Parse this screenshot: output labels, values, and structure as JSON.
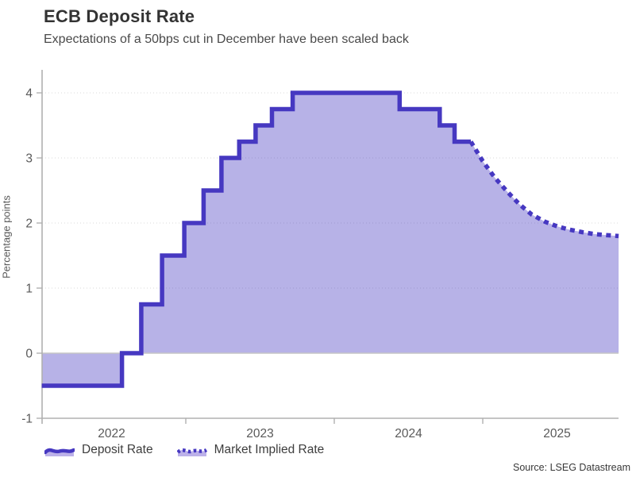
{
  "header": {
    "title": "ECB Deposit Rate",
    "subtitle": "Expectations of a 50bps cut in December have been scaled back"
  },
  "y_axis": {
    "title": "Percentage points",
    "ticks": [
      {
        "v": 4,
        "label": "4"
      },
      {
        "v": 3,
        "label": "3"
      },
      {
        "v": 2,
        "label": "2"
      },
      {
        "v": 1,
        "label": "1"
      },
      {
        "v": 0,
        "label": "0"
      },
      {
        "v": -1,
        "label": "-1"
      }
    ]
  },
  "x_axis": {
    "year_boundary_ticks": [
      2023,
      2024,
      2025
    ],
    "year_labels": [
      {
        "t": 2022.5,
        "label": "2022"
      },
      {
        "t": 2023.5,
        "label": "2023"
      },
      {
        "t": 2024.5,
        "label": "2024"
      },
      {
        "t": 2025.5,
        "label": "2025"
      }
    ]
  },
  "legend": {
    "items": [
      {
        "label": "Deposit Rate",
        "style": "solid"
      },
      {
        "label": "Market Implied Rate",
        "style": "dotted"
      }
    ]
  },
  "source": "Source: LSEG Datastream",
  "colors": {
    "line": "#4638c1",
    "fill": "rgba(70,56,193,0.39)",
    "grid": "#d8d8d8",
    "zero_line": "#c6c6c6",
    "axis": "#b0b0b0",
    "tick_text": "#595959"
  },
  "chart_data": {
    "type": "area",
    "title": "ECB Deposit Rate",
    "subtitle": "Expectations of a 50bps cut in December have been scaled back",
    "xlabel": "",
    "ylabel": "Percentage points",
    "ylim": [
      -1,
      4.35
    ],
    "xlim": [
      2022.03,
      2025.915
    ],
    "grid": "dotted horizontal at 1,2,3,4; solid line at 0",
    "legend_position": "bottom-left",
    "series": [
      {
        "name": "Deposit Rate",
        "style": "solid-step",
        "unit": "percentage points",
        "points": [
          [
            2022.03,
            -0.5
          ],
          [
            2022.57,
            0.0
          ],
          [
            2022.7,
            0.75
          ],
          [
            2022.84,
            1.5
          ],
          [
            2022.99,
            2.0
          ],
          [
            2023.12,
            2.5
          ],
          [
            2023.24,
            3.0
          ],
          [
            2023.36,
            3.25
          ],
          [
            2023.47,
            3.5
          ],
          [
            2023.58,
            3.75
          ],
          [
            2023.72,
            4.0
          ],
          [
            2024.44,
            3.75
          ],
          [
            2024.71,
            3.5
          ],
          [
            2024.81,
            3.25
          ]
        ],
        "end_t": 2024.92
      },
      {
        "name": "Market Implied Rate",
        "style": "dotted-line",
        "unit": "percentage points",
        "points": [
          [
            2024.92,
            3.25
          ],
          [
            2025.0,
            2.95
          ],
          [
            2025.08,
            2.7
          ],
          [
            2025.17,
            2.47
          ],
          [
            2025.25,
            2.28
          ],
          [
            2025.33,
            2.13
          ],
          [
            2025.42,
            2.02
          ],
          [
            2025.5,
            1.95
          ],
          [
            2025.58,
            1.9
          ],
          [
            2025.67,
            1.86
          ],
          [
            2025.75,
            1.83
          ],
          [
            2025.83,
            1.815
          ],
          [
            2025.915,
            1.8
          ]
        ]
      }
    ]
  }
}
